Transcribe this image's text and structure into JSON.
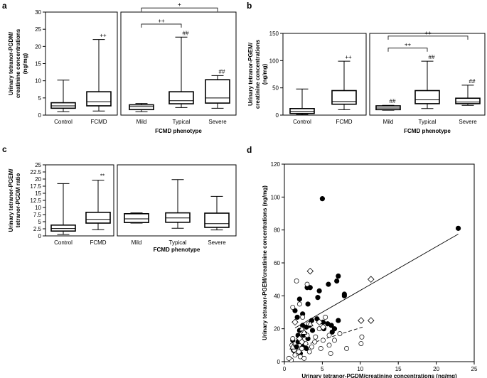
{
  "figure": {
    "panel_letters": {
      "a": "a",
      "b": "b",
      "c": "c",
      "d": "d"
    },
    "group_label": "FCMD phenotype"
  },
  "chart_data": [
    {
      "panel": "a",
      "type": "boxplot",
      "ylabel": "Urinary tetranor-PGDM/ creatinine concentrations (ng/mg)",
      "ylabel_lines": [
        "Urinary tetranor-PGDM/",
        "creatinine concentrations",
        "(ng/mg)"
      ],
      "ylim": [
        0,
        30
      ],
      "yticks": [
        0,
        5,
        10,
        15,
        20,
        25,
        30
      ],
      "xlabel": "FCMD phenotype",
      "left_groups": [
        {
          "name": "Control",
          "whisker_low": 1.0,
          "q1": 2.0,
          "median": 2.7,
          "q3": 3.6,
          "whisker_high": 10.2,
          "mark": ""
        },
        {
          "name": "FCMD",
          "whisker_low": 1.2,
          "q1": 2.7,
          "median": 3.9,
          "q3": 6.8,
          "whisker_high": 22.0,
          "mark": "++"
        }
      ],
      "right_groups": [
        {
          "name": "Mild",
          "whisker_low": 1.0,
          "q1": 1.6,
          "median": 2.5,
          "q3": 3.0,
          "whisker_high": 3.4,
          "mark": ""
        },
        {
          "name": "Typical",
          "whisker_low": 2.2,
          "q1": 3.3,
          "median": 4.2,
          "q3": 6.8,
          "whisker_high": 22.7,
          "mark": "##"
        },
        {
          "name": "Severe",
          "whisker_low": 2.0,
          "q1": 3.5,
          "median": 5.0,
          "q3": 10.3,
          "whisker_high": 11.5,
          "mark": "##"
        }
      ],
      "brackets": [
        {
          "from": "Mild",
          "to": "Typical",
          "mark": "++",
          "y": 26.5
        },
        {
          "from": "Mild",
          "to": "Severe",
          "mark": "+",
          "y": 31.2
        }
      ]
    },
    {
      "panel": "b",
      "type": "boxplot",
      "ylabel": "Urinary tetranor-PGEM/ creatinine concentrations (ng/mg)",
      "ylabel_lines": [
        "Urinary tetranor-PGEM/",
        "creatinine concentrations",
        "(ng/mg)"
      ],
      "ylim": [
        0,
        150
      ],
      "yticks": [
        0,
        50,
        100,
        150
      ],
      "xlabel": "FCMD phenotype",
      "left_groups": [
        {
          "name": "Control",
          "whisker_low": 1,
          "q1": 3,
          "median": 7,
          "q3": 12,
          "whisker_high": 48,
          "mark": ""
        },
        {
          "name": "FCMD",
          "whisker_low": 10,
          "q1": 20,
          "median": 25,
          "q3": 45,
          "whisker_high": 99,
          "mark": "++"
        }
      ],
      "right_groups": [
        {
          "name": "Mild",
          "whisker_low": 9,
          "q1": 10,
          "median": 13,
          "q3": 17,
          "whisker_high": 18,
          "mark": "##"
        },
        {
          "name": "Typical",
          "whisker_low": 12,
          "q1": 21,
          "median": 28,
          "q3": 45,
          "whisker_high": 99,
          "mark": "##"
        },
        {
          "name": "Severe",
          "whisker_low": 18,
          "q1": 21,
          "median": 24,
          "q3": 31,
          "whisker_high": 55,
          "mark": "##"
        }
      ],
      "brackets": [
        {
          "from": "Mild",
          "to": "Typical",
          "mark": "++",
          "y": 123
        },
        {
          "from": "Mild",
          "to": "Severe",
          "mark": "++",
          "y": 145
        }
      ]
    },
    {
      "panel": "c",
      "type": "boxplot",
      "ylabel": "Urinary tetranor-PGEM/ tetranor-PGDM ratio",
      "ylabel_lines": [
        "Urinary tetranor-PGEM/",
        "tetranor-PGDM ratio"
      ],
      "ylim": [
        0,
        25
      ],
      "yticks": [
        0,
        2.5,
        5,
        7.5,
        10,
        12.5,
        15,
        17.5,
        20,
        22.5,
        25
      ],
      "ytick_labels": [
        "0",
        "2.5",
        "5",
        "7.5",
        "10",
        "12.5",
        "15",
        "17.5",
        "20",
        "22.5",
        "25"
      ],
      "xlabel": "FCMD phenotype",
      "left_groups": [
        {
          "name": "Control",
          "whisker_low": 0.5,
          "q1": 1.7,
          "median": 2.6,
          "q3": 3.8,
          "whisker_high": 18.4,
          "mark": ""
        },
        {
          "name": "FCMD",
          "whisker_low": 2.2,
          "q1": 4.5,
          "median": 5.8,
          "q3": 8.3,
          "whisker_high": 19.6,
          "mark": "**"
        }
      ],
      "right_groups": [
        {
          "name": "Mild",
          "whisker_low": 4.5,
          "q1": 4.7,
          "median": 6.0,
          "q3": 7.8,
          "whisker_high": 8.1,
          "mark": ""
        },
        {
          "name": "Typical",
          "whisker_low": 2.7,
          "q1": 4.8,
          "median": 6.3,
          "q3": 8.1,
          "whisker_high": 19.8,
          "mark": ""
        },
        {
          "name": "Severe",
          "whisker_low": 2.1,
          "q1": 3.0,
          "median": 4.3,
          "q3": 8.0,
          "whisker_high": 13.9,
          "mark": ""
        }
      ],
      "brackets": []
    },
    {
      "panel": "d",
      "type": "scatter",
      "xlabel": "Urinary tetranor-PGDM/creatinine concentrations (ng/mg)",
      "ylabel": "Urinary tetranor-PGEM/creatinine concentrations (ng/mg)",
      "xlim": [
        0,
        25
      ],
      "ylim": [
        0,
        120
      ],
      "xticks": [
        0,
        5,
        10,
        15,
        20,
        25
      ],
      "yticks": [
        0,
        20,
        40,
        60,
        80,
        100,
        120
      ],
      "series": [
        {
          "name": "filled circles",
          "marker": "filled-circle",
          "points": [
            [
              5.0,
              99
            ],
            [
              22.9,
              81
            ],
            [
              7.1,
              52
            ],
            [
              6.9,
              49
            ],
            [
              5.8,
              47
            ],
            [
              4.6,
              43
            ],
            [
              3.0,
              45
            ],
            [
              3.4,
              45
            ],
            [
              2.0,
              38
            ],
            [
              1.4,
              31
            ],
            [
              3.1,
              35
            ],
            [
              1.7,
              27
            ],
            [
              2.4,
              22
            ],
            [
              2.9,
              21
            ],
            [
              3.6,
              25
            ],
            [
              4.3,
              26
            ],
            [
              5.1,
              24
            ],
            [
              5.7,
              23
            ],
            [
              6.2,
              22
            ],
            [
              6.6,
              20
            ],
            [
              7.1,
              25
            ],
            [
              7.9,
              41
            ],
            [
              7.9,
              40
            ],
            [
              2.0,
              19
            ],
            [
              2.7,
              17
            ],
            [
              3.1,
              14
            ],
            [
              1.1,
              13
            ],
            [
              1.8,
              12
            ],
            [
              2.5,
              10
            ],
            [
              2.9,
              8
            ],
            [
              1.4,
              6
            ],
            [
              2.1,
              5
            ],
            [
              1.8,
              16
            ],
            [
              2.4,
              29
            ],
            [
              4.4,
              39
            ],
            [
              5.2,
              20
            ],
            [
              3.7,
              19
            ],
            [
              2.5,
              16
            ],
            [
              1.2,
              7
            ],
            [
              1.6,
              9
            ],
            [
              2.3,
              12
            ],
            [
              3.3,
              22
            ],
            [
              6.3,
              18
            ]
          ]
        },
        {
          "name": "open circles",
          "marker": "open-circle",
          "points": [
            [
              1.6,
              49
            ],
            [
              3.0,
              47
            ],
            [
              2.0,
              35
            ],
            [
              1.1,
              33
            ],
            [
              2.4,
              27
            ],
            [
              3.2,
              23
            ],
            [
              5.4,
              27
            ],
            [
              4.6,
              20
            ],
            [
              5.9,
              16
            ],
            [
              4.1,
              15
            ],
            [
              7.3,
              17
            ],
            [
              6.6,
              13
            ],
            [
              5.9,
              10
            ],
            [
              10.2,
              15
            ],
            [
              10.1,
              11
            ],
            [
              8.2,
              8
            ],
            [
              6.1,
              5
            ],
            [
              1.0,
              10
            ],
            [
              1.3,
              7
            ],
            [
              1.6,
              5
            ],
            [
              2.1,
              3
            ],
            [
              2.6,
              2
            ],
            [
              0.9,
              1
            ],
            [
              1.9,
              6
            ],
            [
              2.3,
              8
            ],
            [
              3.3,
              6
            ],
            [
              3.6,
              9
            ],
            [
              4.0,
              12
            ],
            [
              4.8,
              8
            ],
            [
              5.1,
              13
            ],
            [
              2.8,
              11
            ],
            [
              1.4,
              4
            ],
            [
              0.6,
              2
            ],
            [
              1.1,
              14
            ],
            [
              3.0,
              16
            ]
          ]
        },
        {
          "name": "open diamonds",
          "marker": "open-diamond",
          "points": [
            [
              3.4,
              55
            ],
            [
              11.4,
              50
            ],
            [
              1.4,
              24
            ],
            [
              10.1,
              25
            ],
            [
              11.4,
              25
            ],
            [
              5.1,
              21
            ],
            [
              2.0,
              14
            ],
            [
              2.3,
              12
            ],
            [
              4.6,
              24
            ]
          ]
        },
        {
          "name": "open triangles",
          "marker": "open-triangle",
          "points": [
            [
              1.1,
              9
            ],
            [
              2.3,
              20
            ],
            [
              2.6,
              18
            ],
            [
              3.4,
              23
            ]
          ]
        }
      ],
      "fit_lines": [
        {
          "style": "solid",
          "x": [
            1.4,
            22.9
          ],
          "y": [
            20.5,
            77.5
          ]
        },
        {
          "style": "dashed",
          "x": [
            1.3,
            10.3
          ],
          "y": [
            8.0,
            21.0
          ]
        }
      ]
    }
  ]
}
